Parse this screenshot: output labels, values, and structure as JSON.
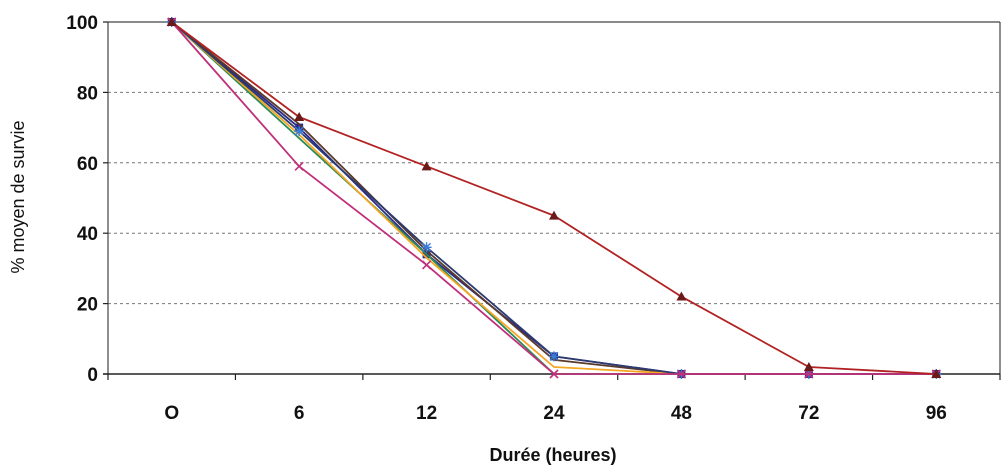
{
  "chart_data": {
    "type": "line",
    "xlabel": "Durée (heures)",
    "ylabel": "% moyen de survie",
    "categories": [
      "O",
      "6",
      "12",
      "24",
      "48",
      "72",
      "96"
    ],
    "yticks": [
      "0",
      "20",
      "40",
      "60",
      "80",
      "100"
    ],
    "ylim": [
      0,
      100
    ],
    "grid": true,
    "series": [
      {
        "color": "#b22222",
        "marker": "triangle",
        "values": [
          100,
          73,
          59,
          45,
          22,
          2,
          0
        ]
      },
      {
        "color": "#c0307a",
        "marker": "x",
        "values": [
          100,
          59,
          31,
          0,
          0,
          0,
          0
        ]
      },
      {
        "color": "#2d3b6e",
        "marker": "star",
        "values": [
          100,
          69,
          36,
          5,
          0,
          0,
          0
        ]
      },
      {
        "color": "#f5a623",
        "marker": "none",
        "values": [
          100,
          68,
          33,
          2,
          0,
          0,
          0
        ]
      },
      {
        "color": "#2e8b57",
        "marker": "none",
        "values": [
          100,
          67,
          34,
          0,
          0,
          0,
          0
        ]
      },
      {
        "color": "#5a3a2a",
        "marker": "none",
        "values": [
          100,
          71,
          35,
          4,
          0,
          0,
          0
        ]
      },
      {
        "color": "#2a2a8a",
        "marker": "square",
        "values": [
          100,
          70,
          34,
          5,
          0,
          0,
          0
        ]
      }
    ]
  }
}
